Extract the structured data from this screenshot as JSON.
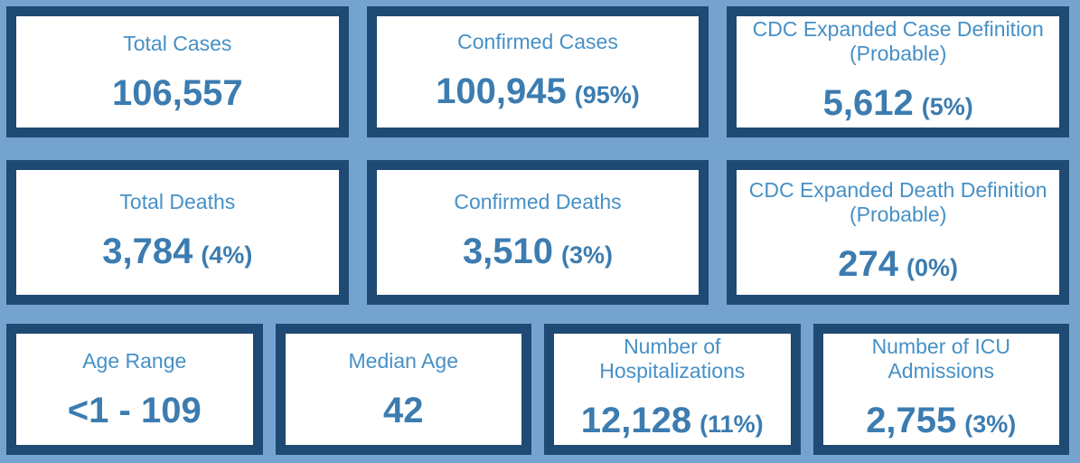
{
  "colors": {
    "page_background": "#74a3cf",
    "card_border": "#1f4a73",
    "card_background": "#ffffff",
    "label_text": "#4690c6",
    "value_text": "#3c7cb0"
  },
  "rows": [
    {
      "cards": [
        {
          "label": "Total Cases",
          "value": "106,557",
          "percent": ""
        },
        {
          "label": "Confirmed Cases",
          "value": "100,945",
          "percent": "(95%)"
        },
        {
          "label": "CDC Expanded Case Definition (Probable)",
          "value": "5,612",
          "percent": "(5%)"
        }
      ]
    },
    {
      "cards": [
        {
          "label": "Total Deaths",
          "value": "3,784",
          "percent": "(4%)"
        },
        {
          "label": "Confirmed Deaths",
          "value": "3,510",
          "percent": "(3%)"
        },
        {
          "label": "CDC Expanded Death Definition (Probable)",
          "value": "274",
          "percent": "(0%)"
        }
      ]
    },
    {
      "cards": [
        {
          "label": "Age Range",
          "value": "<1 - 109",
          "percent": ""
        },
        {
          "label": "Median Age",
          "value": "42",
          "percent": ""
        },
        {
          "label": "Number of Hospitalizations",
          "value": "12,128",
          "percent": "(11%)"
        },
        {
          "label": "Number of ICU Admissions",
          "value": "2,755",
          "percent": "(3%)"
        }
      ]
    }
  ],
  "chart_data": {
    "type": "table",
    "title": "",
    "metrics": [
      {
        "label": "Total Cases",
        "value": 106557,
        "percent_of_total": null
      },
      {
        "label": "Confirmed Cases",
        "value": 100945,
        "percent_of_total": 95
      },
      {
        "label": "CDC Expanded Case Definition (Probable)",
        "value": 5612,
        "percent_of_total": 5
      },
      {
        "label": "Total Deaths",
        "value": 3784,
        "percent_of_total": 4
      },
      {
        "label": "Confirmed Deaths",
        "value": 3510,
        "percent_of_total": 3
      },
      {
        "label": "CDC Expanded Death Definition (Probable)",
        "value": 274,
        "percent_of_total": 0
      },
      {
        "label": "Age Range",
        "value": "<1 - 109",
        "percent_of_total": null
      },
      {
        "label": "Median Age",
        "value": 42,
        "percent_of_total": null
      },
      {
        "label": "Number of Hospitalizations",
        "value": 12128,
        "percent_of_total": 11
      },
      {
        "label": "Number of ICU Admissions",
        "value": 2755,
        "percent_of_total": 3
      }
    ]
  }
}
